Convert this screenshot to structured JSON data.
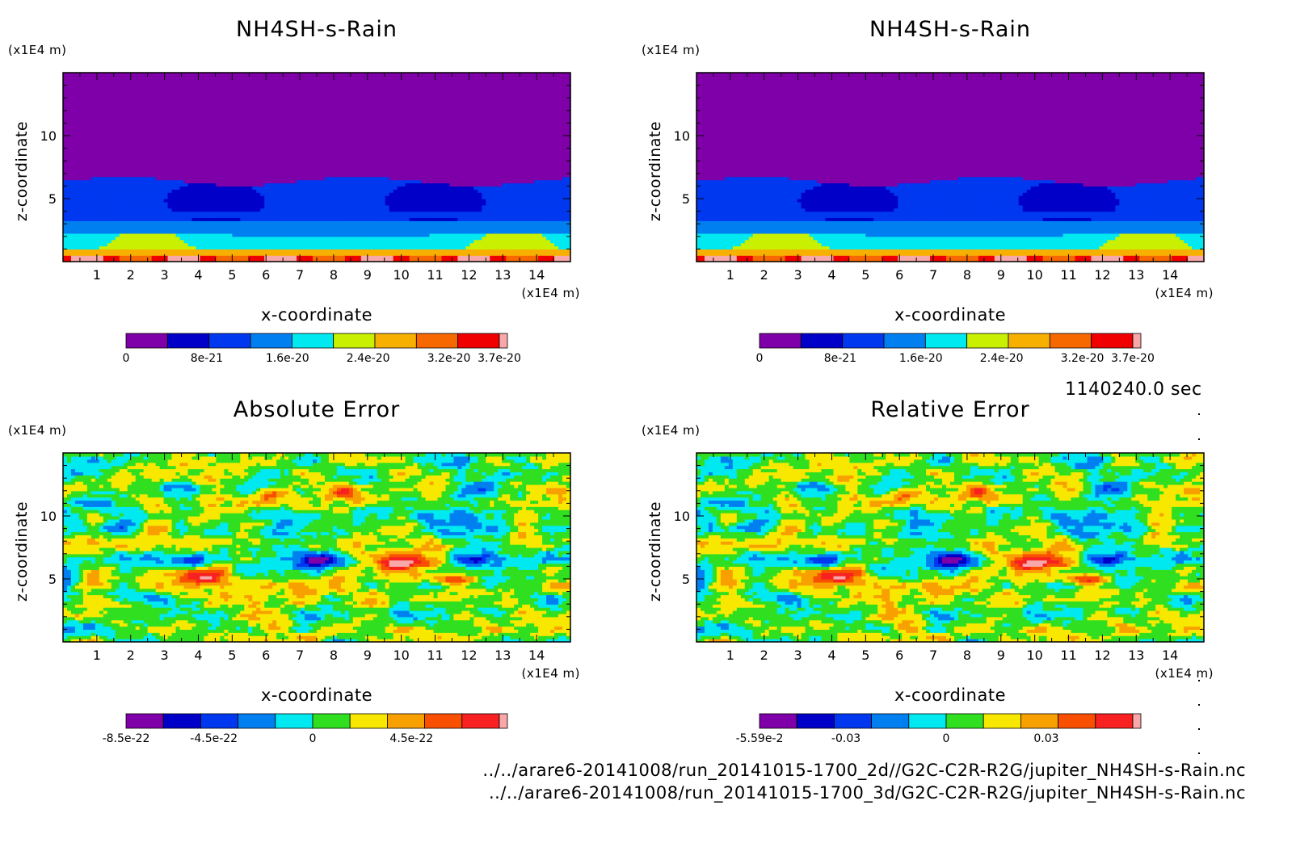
{
  "time_label": "1140240.0 sec",
  "footer": {
    "path_2d": "../../arare6-20141008/run_20141015-1700_2d//G2C-C2R-R2G/jupiter_NH4SH-s-Rain.nc",
    "path_3d": "../../arare6-20141008/run_20141015-1700_3d/G2C-C2R-R2G/jupiter_NH4SH-s-Rain.nc"
  },
  "chart_data": [
    {
      "type": "heatmap",
      "title": "NH4SH-s-Rain",
      "xlabel": "x-coordinate",
      "ylabel": "z-coordinate",
      "x_unit": "(x1E4 m)",
      "y_unit": "(x1E4 m)",
      "xlim": [
        0,
        15
      ],
      "ylim": [
        0,
        15
      ],
      "x_ticks": [
        "1",
        "2",
        "3",
        "4",
        "5",
        "6",
        "7",
        "8",
        "9",
        "10",
        "11",
        "12",
        "13",
        "14"
      ],
      "y_ticks": [
        "5",
        "10"
      ],
      "colorbar": {
        "colors": [
          "#7f00a8",
          "#0000c8",
          "#0038f0",
          "#0080f0",
          "#00e8f0",
          "#c8f000",
          "#f8b000",
          "#f86800",
          "#f00000",
          "#f8a8a8"
        ],
        "tick_labels": [
          "0",
          "8e-21",
          "1.6e-20",
          "2.4e-20",
          "3.2e-20",
          "3.7e-20"
        ],
        "tick_values": [
          0,
          8e-21,
          1.6e-20,
          2.4e-20,
          3.2e-20,
          3.7e-20
        ],
        "range": [
          0,
          3.7e-20
        ]
      }
    },
    {
      "type": "heatmap",
      "title": "NH4SH-s-Rain",
      "xlabel": "x-coordinate",
      "ylabel": "z-coordinate",
      "x_unit": "(x1E4 m)",
      "y_unit": "(x1E4 m)",
      "xlim": [
        0,
        15
      ],
      "ylim": [
        0,
        15
      ],
      "x_ticks": [
        "1",
        "2",
        "3",
        "4",
        "5",
        "6",
        "7",
        "8",
        "9",
        "10",
        "11",
        "12",
        "13",
        "14"
      ],
      "y_ticks": [
        "5",
        "10"
      ],
      "colorbar": {
        "colors": [
          "#7f00a8",
          "#0000c8",
          "#0038f0",
          "#0080f0",
          "#00e8f0",
          "#c8f000",
          "#f8b000",
          "#f86800",
          "#f00000",
          "#f8a8a8"
        ],
        "tick_labels": [
          "0",
          "8e-21",
          "1.6e-20",
          "2.4e-20",
          "3.2e-20",
          "3.7e-20"
        ],
        "tick_values": [
          0,
          8e-21,
          1.6e-20,
          2.4e-20,
          3.2e-20,
          3.7e-20
        ],
        "range": [
          0,
          3.7e-20
        ]
      }
    },
    {
      "type": "heatmap",
      "title": "Absolute Error",
      "xlabel": "x-coordinate",
      "ylabel": "z-coordinate",
      "x_unit": "(x1E4 m)",
      "y_unit": "(x1E4 m)",
      "xlim": [
        0,
        15
      ],
      "ylim": [
        0,
        15
      ],
      "x_ticks": [
        "1",
        "2",
        "3",
        "4",
        "5",
        "6",
        "7",
        "8",
        "9",
        "10",
        "11",
        "12",
        "13",
        "14"
      ],
      "y_ticks": [
        "5",
        "10"
      ],
      "colorbar": {
        "colors": [
          "#7f00a8",
          "#0000c8",
          "#0038f0",
          "#0080f0",
          "#00e8f0",
          "#30e020",
          "#f8e800",
          "#f8a000",
          "#f85000",
          "#f82020",
          "#f8a8a8"
        ],
        "tick_labels": [
          "-8.5e-22",
          "-4.5e-22",
          "0",
          "4.5e-22"
        ],
        "tick_values": [
          -8.5e-22,
          -4.5e-22,
          0,
          4.5e-22
        ],
        "range": [
          -8.5e-22,
          8.5e-22
        ]
      }
    },
    {
      "type": "heatmap",
      "title": "Relative Error",
      "xlabel": "x-coordinate",
      "ylabel": "z-coordinate",
      "x_unit": "(x1E4 m)",
      "y_unit": "(x1E4 m)",
      "xlim": [
        0,
        15
      ],
      "ylim": [
        0,
        15
      ],
      "x_ticks": [
        "1",
        "2",
        "3",
        "4",
        "5",
        "6",
        "7",
        "8",
        "9",
        "10",
        "11",
        "12",
        "13",
        "14"
      ],
      "y_ticks": [
        "5",
        "10"
      ],
      "colorbar": {
        "colors": [
          "#7f00a8",
          "#0000c8",
          "#0038f0",
          "#0080f0",
          "#00e8f0",
          "#30e020",
          "#f8e800",
          "#f8a000",
          "#f85000",
          "#f82020",
          "#f8a8a8"
        ],
        "tick_labels": [
          "-5.59e-2",
          "-0.03",
          "0",
          "0.03"
        ],
        "tick_values": [
          -0.0559,
          -0.03,
          0,
          0.03
        ],
        "range": [
          -0.0559,
          0.0559
        ]
      }
    }
  ]
}
